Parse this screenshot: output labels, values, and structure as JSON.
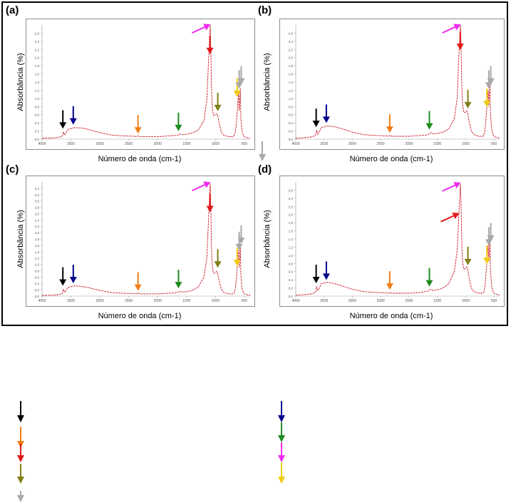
{
  "figure": {
    "panels": [
      {
        "letter": "(a)",
        "ylabel": "Absorbância (%)",
        "xlabel": "Número de onda (cm-1)"
      },
      {
        "letter": "(b)",
        "ylabel": "Absorbância (%)",
        "xlabel": "Número de onda (cm-1)"
      },
      {
        "letter": "(c)",
        "ylabel": "Absorbância (%)",
        "xlabel": "Número de onda (cm-1)"
      },
      {
        "letter": "(d)",
        "ylabel": "Absorbância (%)",
        "xlabel": "Número de onda (cm-1)"
      }
    ]
  },
  "colors": {
    "spectrum": "#cc1f2e",
    "black": "#000000",
    "navy": "#00008b",
    "orange": "#f07d1a",
    "green": "#1f8c1f",
    "red": "#e11a1a",
    "magenta": "#ee2bee",
    "olive": "#7f7f16",
    "yellow": "#f2cc12",
    "gray": "#a8a8a8"
  },
  "legend": {
    "left_column": [
      "black",
      "orange",
      "red",
      "olive",
      "gray"
    ],
    "right_column": [
      "navy",
      "green",
      "magenta",
      "yellow"
    ]
  },
  "chart_data": [
    {
      "type": "line",
      "panel": "(a)",
      "xlabel": "Número de onda (cm-1)",
      "ylabel": "Absorbância (%)",
      "x_ticks": [
        "4000",
        "3500",
        "3000",
        "2500",
        "2000",
        "1500",
        "1000",
        "500"
      ],
      "y_ticks": [
        "0,0",
        "0,2",
        "0,4",
        "0,6",
        "0,8",
        "1,0",
        "1,2",
        "1,4",
        "1,6",
        "1,8",
        "2,0",
        "2,2",
        "2,4",
        "2,6"
      ],
      "xlim": [
        4000,
        400
      ],
      "ylim": [
        0,
        2.8
      ],
      "series": [
        {
          "x": [
            4000,
            3800,
            3700,
            3650,
            3630,
            3610,
            3590,
            3550,
            3450,
            3400,
            3300,
            3200,
            3100,
            3000,
            2800,
            2600,
            2400,
            2360,
            2340,
            2300,
            2000,
            1900,
            1800,
            1700,
            1650,
            1620,
            1580,
            1500,
            1400,
            1300,
            1200,
            1150,
            1120,
            1100,
            1090,
            1080,
            1070,
            1060,
            1050,
            1030,
            1000,
            980,
            960,
            940,
            900,
            860,
            820,
            790,
            760,
            720,
            700,
            680,
            660,
            640,
            610,
            600,
            590,
            570,
            560,
            540,
            520,
            500,
            470,
            440,
            410,
            400
          ],
          "y": [
            0.02,
            0.03,
            0.05,
            0.07,
            0.18,
            0.1,
            0.14,
            0.24,
            0.28,
            0.28,
            0.27,
            0.24,
            0.2,
            0.16,
            0.1,
            0.08,
            0.07,
            0.06,
            0.08,
            0.06,
            0.06,
            0.07,
            0.08,
            0.09,
            0.1,
            0.13,
            0.11,
            0.12,
            0.15,
            0.22,
            0.45,
            0.95,
            1.9,
            2.55,
            2.8,
            2.2,
            1.3,
            0.9,
            0.7,
            0.58,
            0.6,
            0.62,
            0.58,
            0.42,
            0.18,
            0.1,
            0.08,
            0.07,
            0.06,
            0.06,
            0.06,
            0.08,
            0.15,
            0.35,
            0.95,
            1.12,
            0.7,
            1.25,
            0.5,
            0.2,
            0.1,
            0.06,
            0.04,
            0.03,
            0.02,
            0.02
          ]
        }
      ],
      "arrows": [
        {
          "color": "black",
          "x": 3640,
          "y": 0.22,
          "dir": "down"
        },
        {
          "color": "navy",
          "x": 3460,
          "y": 0.32,
          "dir": "down"
        },
        {
          "color": "orange",
          "x": 2340,
          "y": 0.1,
          "dir": "down"
        },
        {
          "color": "green",
          "x": 1640,
          "y": 0.16,
          "dir": "down"
        },
        {
          "color": "magenta",
          "x": 1085,
          "y": 2.78,
          "dir": "diag"
        },
        {
          "color": "red",
          "x": 1095,
          "y": 2.05,
          "dir": "down"
        },
        {
          "color": "olive",
          "x": 960,
          "y": 0.65,
          "dir": "down"
        },
        {
          "color": "yellow",
          "x": 625,
          "y": 1.0,
          "dir": "down"
        },
        {
          "color": "gray",
          "x": 590,
          "y": 1.2,
          "dir": "down"
        },
        {
          "color": "gray",
          "x": 555,
          "y": 1.3,
          "dir": "down"
        }
      ]
    },
    {
      "type": "line",
      "panel": "(b)",
      "xlabel": "Número de onda (cm-1)",
      "ylabel": "Absorbância (%)",
      "x_ticks": [
        "4000",
        "3500",
        "3000",
        "2500",
        "2000",
        "1500",
        "1000",
        "500"
      ],
      "y_ticks": [
        "0,0",
        "0,2",
        "0,4",
        "0,6",
        "0,8",
        "1,0",
        "1,2",
        "1,4",
        "1,6",
        "1,8",
        "2,0",
        "2,2",
        "2,4",
        "2,6"
      ],
      "xlim": [
        4000,
        400
      ],
      "ylim": [
        0,
        2.8
      ],
      "series": [
        {
          "x": [
            4000,
            3800,
            3700,
            3650,
            3630,
            3610,
            3590,
            3550,
            3450,
            3400,
            3300,
            3200,
            3100,
            3000,
            2800,
            2600,
            2400,
            2360,
            2340,
            2300,
            2000,
            1900,
            1800,
            1700,
            1650,
            1620,
            1580,
            1500,
            1400,
            1300,
            1200,
            1150,
            1120,
            1100,
            1090,
            1080,
            1070,
            1060,
            1050,
            1030,
            1000,
            980,
            960,
            940,
            900,
            860,
            820,
            790,
            760,
            720,
            700,
            680,
            660,
            640,
            610,
            600,
            590,
            570,
            560,
            540,
            520,
            500,
            470,
            440,
            410,
            400
          ],
          "y": [
            0.02,
            0.04,
            0.06,
            0.09,
            0.22,
            0.12,
            0.17,
            0.28,
            0.32,
            0.32,
            0.3,
            0.26,
            0.22,
            0.17,
            0.11,
            0.09,
            0.08,
            0.07,
            0.09,
            0.07,
            0.07,
            0.08,
            0.09,
            0.1,
            0.12,
            0.16,
            0.13,
            0.14,
            0.17,
            0.25,
            0.5,
            1.0,
            2.0,
            2.6,
            2.8,
            2.3,
            1.4,
            1.0,
            0.8,
            0.65,
            0.66,
            0.7,
            0.62,
            0.45,
            0.2,
            0.12,
            0.09,
            0.08,
            0.07,
            0.07,
            0.07,
            0.09,
            0.2,
            0.5,
            1.05,
            1.2,
            0.8,
            1.35,
            0.6,
            0.25,
            0.12,
            0.07,
            0.05,
            0.04,
            0.03,
            0.02
          ]
        }
      ],
      "arrows": [
        {
          "color": "black",
          "x": 3640,
          "y": 0.26,
          "dir": "down"
        },
        {
          "color": "navy",
          "x": 3460,
          "y": 0.36,
          "dir": "down"
        },
        {
          "color": "orange",
          "x": 2340,
          "y": 0.12,
          "dir": "down"
        },
        {
          "color": "green",
          "x": 1640,
          "y": 0.2,
          "dir": "down"
        },
        {
          "color": "magenta",
          "x": 1085,
          "y": 2.78,
          "dir": "diag"
        },
        {
          "color": "red",
          "x": 1095,
          "y": 2.15,
          "dir": "down"
        },
        {
          "color": "olive",
          "x": 960,
          "y": 0.72,
          "dir": "down"
        },
        {
          "color": "yellow",
          "x": 625,
          "y": 0.75,
          "dir": "down"
        },
        {
          "color": "gray",
          "x": 590,
          "y": 1.2,
          "dir": "down"
        },
        {
          "color": "gray",
          "x": 555,
          "y": 1.3,
          "dir": "down"
        }
      ]
    },
    {
      "type": "line",
      "panel": "(c)",
      "xlabel": "Número de onda (cm-1)",
      "ylabel": "Absorbância (%)",
      "x_ticks": [
        "4000",
        "3500",
        "3000",
        "2500",
        "2000",
        "1500",
        "1000",
        "500"
      ],
      "y_ticks": [
        "0,0",
        "0,2",
        "0,4",
        "0,6",
        "0,8",
        "1,0",
        "1,2",
        "1,4",
        "1,6",
        "1,8",
        "2,0",
        "2,2",
        "2,4",
        "2,6",
        "2,8",
        "3,0",
        "3,2",
        "3,4"
      ],
      "xlim": [
        4000,
        400
      ],
      "ylim": [
        0,
        3.6
      ],
      "series": [
        {
          "x": [
            4000,
            3800,
            3700,
            3650,
            3630,
            3610,
            3590,
            3550,
            3450,
            3400,
            3300,
            3200,
            3100,
            3000,
            2800,
            2600,
            2400,
            2360,
            2340,
            2300,
            2000,
            1900,
            1800,
            1700,
            1650,
            1620,
            1580,
            1500,
            1400,
            1300,
            1200,
            1150,
            1120,
            1100,
            1090,
            1080,
            1070,
            1060,
            1050,
            1030,
            1000,
            980,
            960,
            940,
            900,
            860,
            820,
            790,
            760,
            720,
            700,
            680,
            660,
            640,
            610,
            600,
            590,
            570,
            560,
            540,
            520,
            500,
            470,
            440,
            410,
            400
          ],
          "y": [
            0.02,
            0.03,
            0.05,
            0.08,
            0.22,
            0.12,
            0.16,
            0.28,
            0.32,
            0.32,
            0.3,
            0.27,
            0.22,
            0.18,
            0.11,
            0.09,
            0.08,
            0.07,
            0.1,
            0.07,
            0.07,
            0.08,
            0.09,
            0.1,
            0.12,
            0.15,
            0.13,
            0.14,
            0.18,
            0.28,
            0.6,
            1.2,
            2.4,
            3.3,
            3.55,
            2.8,
            1.6,
            1.1,
            0.85,
            0.72,
            0.74,
            0.78,
            0.7,
            0.5,
            0.22,
            0.12,
            0.09,
            0.08,
            0.07,
            0.07,
            0.07,
            0.09,
            0.2,
            0.5,
            1.3,
            1.45,
            0.9,
            1.6,
            0.65,
            0.25,
            0.12,
            0.07,
            0.05,
            0.04,
            0.03,
            0.02
          ]
        }
      ],
      "arrows": [
        {
          "color": "black",
          "x": 3640,
          "y": 0.28,
          "dir": "down"
        },
        {
          "color": "navy",
          "x": 3460,
          "y": 0.36,
          "dir": "down"
        },
        {
          "color": "orange",
          "x": 2340,
          "y": 0.12,
          "dir": "down"
        },
        {
          "color": "green",
          "x": 1640,
          "y": 0.2,
          "dir": "down"
        },
        {
          "color": "magenta",
          "x": 1085,
          "y": 3.55,
          "dir": "diag"
        },
        {
          "color": "red",
          "x": 1095,
          "y": 2.6,
          "dir": "down"
        },
        {
          "color": "olive",
          "x": 960,
          "y": 0.85,
          "dir": "down"
        },
        {
          "color": "yellow",
          "x": 625,
          "y": 0.9,
          "dir": "down"
        },
        {
          "color": "gray",
          "x": 590,
          "y": 1.4,
          "dir": "down"
        },
        {
          "color": "gray",
          "x": 555,
          "y": 1.6,
          "dir": "down"
        }
      ]
    },
    {
      "type": "line",
      "panel": "(d)",
      "xlabel": "Número de onda (cm-1)",
      "ylabel": "Absorbância (%)",
      "x_ticks": [
        "4000",
        "3500",
        "3000",
        "2500",
        "2000",
        "1500",
        "1000",
        "500"
      ],
      "y_ticks": [
        "0,0",
        "0,2",
        "0,4",
        "0,6",
        "0,8",
        "1,0",
        "1,2",
        "1,4",
        "1,6",
        "1,8",
        "2,0",
        "2,2",
        "2,4",
        "2,6"
      ],
      "xlim": [
        4000,
        400
      ],
      "ylim": [
        0,
        2.8
      ],
      "series": [
        {
          "x": [
            4000,
            3800,
            3700,
            3650,
            3630,
            3610,
            3590,
            3550,
            3450,
            3400,
            3300,
            3200,
            3100,
            3000,
            2800,
            2600,
            2400,
            2360,
            2340,
            2300,
            2000,
            1900,
            1800,
            1700,
            1650,
            1620,
            1580,
            1500,
            1400,
            1300,
            1200,
            1150,
            1120,
            1100,
            1090,
            1080,
            1070,
            1060,
            1050,
            1030,
            1000,
            980,
            960,
            940,
            900,
            860,
            820,
            790,
            760,
            720,
            700,
            680,
            660,
            640,
            610,
            600,
            590,
            570,
            560,
            540,
            520,
            500,
            470,
            440,
            410,
            400
          ],
          "y": [
            0.02,
            0.04,
            0.06,
            0.1,
            0.24,
            0.14,
            0.18,
            0.3,
            0.34,
            0.33,
            0.3,
            0.26,
            0.21,
            0.17,
            0.11,
            0.09,
            0.08,
            0.07,
            0.09,
            0.07,
            0.07,
            0.08,
            0.09,
            0.11,
            0.13,
            0.17,
            0.14,
            0.15,
            0.2,
            0.3,
            0.6,
            1.1,
            2.0,
            2.55,
            2.75,
            2.2,
            1.4,
            1.0,
            0.8,
            0.66,
            0.68,
            0.72,
            0.64,
            0.46,
            0.2,
            0.12,
            0.09,
            0.08,
            0.07,
            0.07,
            0.07,
            0.09,
            0.22,
            0.55,
            1.1,
            1.25,
            0.85,
            1.35,
            0.6,
            0.25,
            0.12,
            0.07,
            0.05,
            0.04,
            0.03,
            0.02
          ]
        }
      ],
      "arrows": [
        {
          "color": "black",
          "x": 3640,
          "y": 0.28,
          "dir": "down"
        },
        {
          "color": "navy",
          "x": 3460,
          "y": 0.36,
          "dir": "down"
        },
        {
          "color": "orange",
          "x": 2340,
          "y": 0.12,
          "dir": "down"
        },
        {
          "color": "green",
          "x": 1640,
          "y": 0.2,
          "dir": "down"
        },
        {
          "color": "magenta",
          "x": 1085,
          "y": 2.75,
          "dir": "diag"
        },
        {
          "color": "red",
          "x": 1110,
          "y": 2.0,
          "dir": "diag"
        },
        {
          "color": "olive",
          "x": 960,
          "y": 0.72,
          "dir": "down"
        },
        {
          "color": "yellow",
          "x": 625,
          "y": 0.75,
          "dir": "down"
        },
        {
          "color": "gray",
          "x": 590,
          "y": 1.2,
          "dir": "down"
        },
        {
          "color": "gray",
          "x": 555,
          "y": 1.3,
          "dir": "down"
        }
      ]
    }
  ]
}
